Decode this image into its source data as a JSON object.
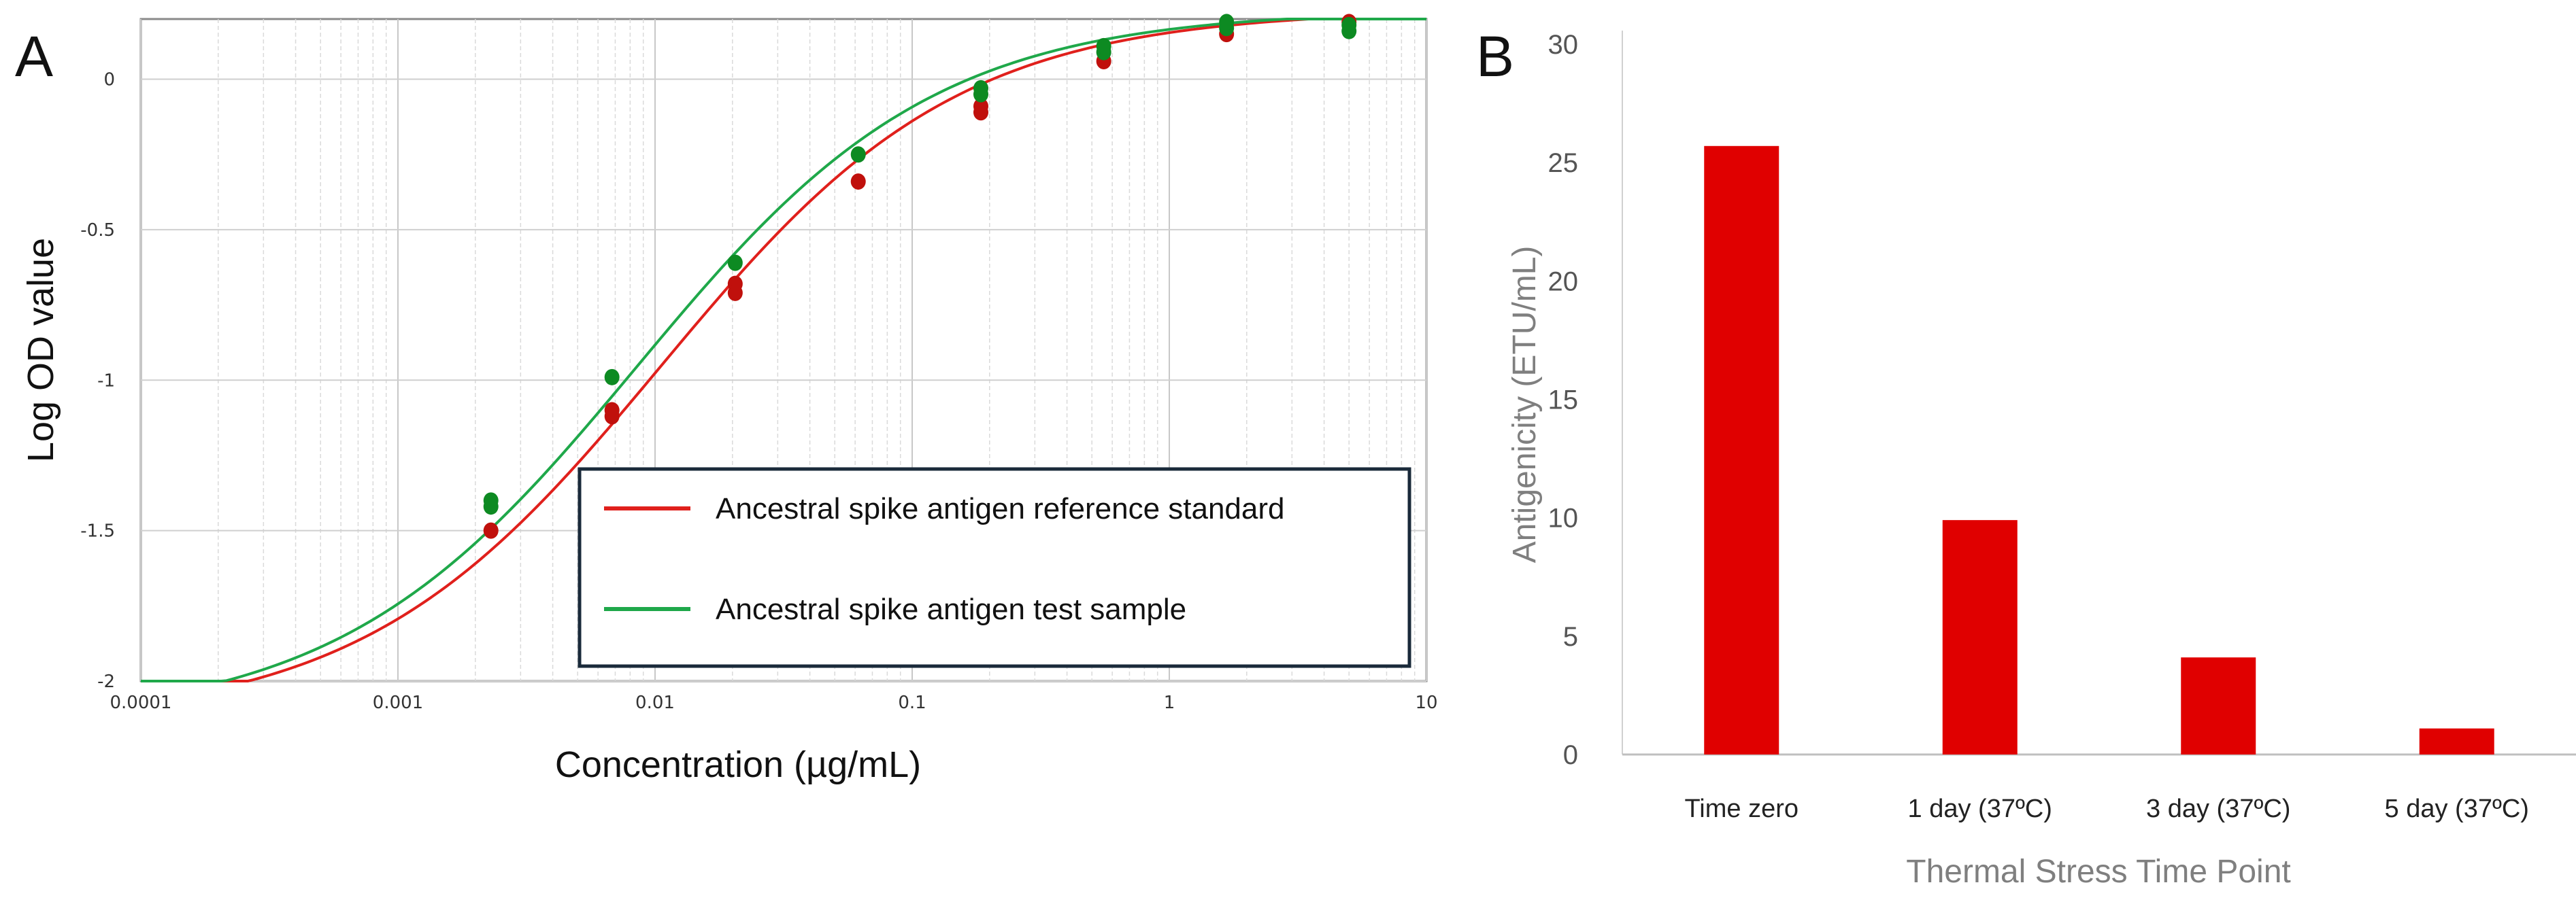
{
  "chart_data": [
    {
      "panel": "A",
      "type": "line",
      "xscale": "log",
      "xlabel": "Concentration (µg/mL)",
      "ylabel": "Log OD value",
      "xlim": [
        0.0001,
        10
      ],
      "ylim": [
        -2,
        0.2
      ],
      "xticks": [
        0.0001,
        0.001,
        0.01,
        0.1,
        1,
        10
      ],
      "xtick_labels": [
        "0.0001",
        "0.001",
        "0.01",
        "0.1",
        "1",
        "10"
      ],
      "yticks": [
        0,
        -0.5,
        -1,
        -1.5,
        -2
      ],
      "ytick_labels": [
        "0",
        "-0.5",
        "-1",
        "-1.5",
        "-2"
      ],
      "grid": true,
      "legend_position": "bottom-right",
      "series": [
        {
          "name": "Ancestral spike antigen reference standard",
          "color": "#e0201c",
          "point_color": "#c0100c",
          "curve": {
            "bottom": -2.14,
            "top": 0.23,
            "ec50": 0.0105,
            "hill": 0.75
          },
          "points": [
            {
              "x": 0.0023,
              "y": -1.5
            },
            {
              "x": 0.0068,
              "y": -1.1
            },
            {
              "x": 0.0068,
              "y": -1.12
            },
            {
              "x": 0.0205,
              "y": -0.68
            },
            {
              "x": 0.0205,
              "y": -0.71
            },
            {
              "x": 0.0617,
              "y": -0.34
            },
            {
              "x": 0.185,
              "y": -0.11
            },
            {
              "x": 0.185,
              "y": -0.09
            },
            {
              "x": 0.556,
              "y": 0.06
            },
            {
              "x": 1.67,
              "y": 0.15
            },
            {
              "x": 5.0,
              "y": 0.19
            }
          ]
        },
        {
          "name": "Ancestral spike antigen test sample",
          "color": "#1fa84a",
          "point_color": "#0d8a22",
          "curve": {
            "bottom": -2.14,
            "top": 0.23,
            "ec50": 0.0085,
            "hill": 0.75
          },
          "points": [
            {
              "x": 0.0023,
              "y": -1.4
            },
            {
              "x": 0.0023,
              "y": -1.42
            },
            {
              "x": 0.0068,
              "y": -0.99
            },
            {
              "x": 0.0205,
              "y": -0.61
            },
            {
              "x": 0.0617,
              "y": -0.25
            },
            {
              "x": 0.185,
              "y": -0.03
            },
            {
              "x": 0.185,
              "y": -0.05
            },
            {
              "x": 0.556,
              "y": 0.09
            },
            {
              "x": 0.556,
              "y": 0.11
            },
            {
              "x": 1.67,
              "y": 0.17
            },
            {
              "x": 1.67,
              "y": 0.19
            },
            {
              "x": 5.0,
              "y": 0.16
            },
            {
              "x": 5.0,
              "y": 0.18
            }
          ]
        }
      ]
    },
    {
      "panel": "B",
      "type": "bar",
      "xlabel": "Thermal Stress Time Point",
      "ylabel": "Antigenicity (ETU/mL)",
      "ylim": [
        0,
        30
      ],
      "yticks": [
        0,
        5,
        10,
        15,
        20,
        25,
        30
      ],
      "ytick_labels": [
        "0",
        "5",
        "10",
        "15",
        "20",
        "25",
        "30"
      ],
      "grid": false,
      "bar_color": "#e00000",
      "categories": [
        "Time zero",
        "1 day (37ºC)",
        "3 day (37ºC)",
        "5 day (37ºC)"
      ],
      "values": [
        25.7,
        9.9,
        4.1,
        1.1
      ]
    }
  ]
}
